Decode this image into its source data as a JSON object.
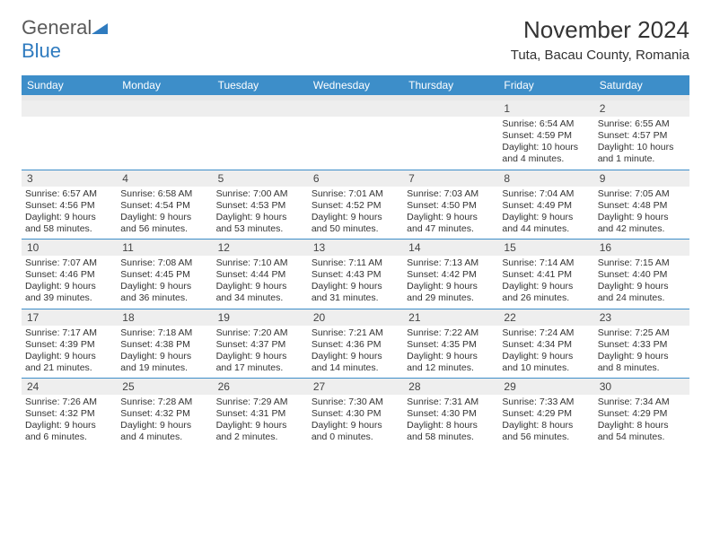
{
  "brand": {
    "name_part1": "General",
    "name_part2": "Blue"
  },
  "header": {
    "month_title": "November 2024",
    "location": "Tuta, Bacau County, Romania"
  },
  "colors": {
    "header_bar": "#3d8ec9",
    "daynum_bg": "#eeeeee",
    "week_divider": "#3d8ec9",
    "text": "#333333",
    "brand_gray": "#5a5a5a",
    "brand_blue": "#2f7bbf",
    "background": "#ffffff"
  },
  "typography": {
    "title_size_pt": 26,
    "location_size_pt": 15,
    "weekday_size_pt": 12,
    "cell_size_pt": 10.5,
    "family": "Arial"
  },
  "weekdays": [
    "Sunday",
    "Monday",
    "Tuesday",
    "Wednesday",
    "Thursday",
    "Friday",
    "Saturday"
  ],
  "weeks": [
    [
      null,
      null,
      null,
      null,
      null,
      {
        "n": "1",
        "sr": "Sunrise: 6:54 AM",
        "ss": "Sunset: 4:59 PM",
        "dl": "Daylight: 10 hours and 4 minutes."
      },
      {
        "n": "2",
        "sr": "Sunrise: 6:55 AM",
        "ss": "Sunset: 4:57 PM",
        "dl": "Daylight: 10 hours and 1 minute."
      }
    ],
    [
      {
        "n": "3",
        "sr": "Sunrise: 6:57 AM",
        "ss": "Sunset: 4:56 PM",
        "dl": "Daylight: 9 hours and 58 minutes."
      },
      {
        "n": "4",
        "sr": "Sunrise: 6:58 AM",
        "ss": "Sunset: 4:54 PM",
        "dl": "Daylight: 9 hours and 56 minutes."
      },
      {
        "n": "5",
        "sr": "Sunrise: 7:00 AM",
        "ss": "Sunset: 4:53 PM",
        "dl": "Daylight: 9 hours and 53 minutes."
      },
      {
        "n": "6",
        "sr": "Sunrise: 7:01 AM",
        "ss": "Sunset: 4:52 PM",
        "dl": "Daylight: 9 hours and 50 minutes."
      },
      {
        "n": "7",
        "sr": "Sunrise: 7:03 AM",
        "ss": "Sunset: 4:50 PM",
        "dl": "Daylight: 9 hours and 47 minutes."
      },
      {
        "n": "8",
        "sr": "Sunrise: 7:04 AM",
        "ss": "Sunset: 4:49 PM",
        "dl": "Daylight: 9 hours and 44 minutes."
      },
      {
        "n": "9",
        "sr": "Sunrise: 7:05 AM",
        "ss": "Sunset: 4:48 PM",
        "dl": "Daylight: 9 hours and 42 minutes."
      }
    ],
    [
      {
        "n": "10",
        "sr": "Sunrise: 7:07 AM",
        "ss": "Sunset: 4:46 PM",
        "dl": "Daylight: 9 hours and 39 minutes."
      },
      {
        "n": "11",
        "sr": "Sunrise: 7:08 AM",
        "ss": "Sunset: 4:45 PM",
        "dl": "Daylight: 9 hours and 36 minutes."
      },
      {
        "n": "12",
        "sr": "Sunrise: 7:10 AM",
        "ss": "Sunset: 4:44 PM",
        "dl": "Daylight: 9 hours and 34 minutes."
      },
      {
        "n": "13",
        "sr": "Sunrise: 7:11 AM",
        "ss": "Sunset: 4:43 PM",
        "dl": "Daylight: 9 hours and 31 minutes."
      },
      {
        "n": "14",
        "sr": "Sunrise: 7:13 AM",
        "ss": "Sunset: 4:42 PM",
        "dl": "Daylight: 9 hours and 29 minutes."
      },
      {
        "n": "15",
        "sr": "Sunrise: 7:14 AM",
        "ss": "Sunset: 4:41 PM",
        "dl": "Daylight: 9 hours and 26 minutes."
      },
      {
        "n": "16",
        "sr": "Sunrise: 7:15 AM",
        "ss": "Sunset: 4:40 PM",
        "dl": "Daylight: 9 hours and 24 minutes."
      }
    ],
    [
      {
        "n": "17",
        "sr": "Sunrise: 7:17 AM",
        "ss": "Sunset: 4:39 PM",
        "dl": "Daylight: 9 hours and 21 minutes."
      },
      {
        "n": "18",
        "sr": "Sunrise: 7:18 AM",
        "ss": "Sunset: 4:38 PM",
        "dl": "Daylight: 9 hours and 19 minutes."
      },
      {
        "n": "19",
        "sr": "Sunrise: 7:20 AM",
        "ss": "Sunset: 4:37 PM",
        "dl": "Daylight: 9 hours and 17 minutes."
      },
      {
        "n": "20",
        "sr": "Sunrise: 7:21 AM",
        "ss": "Sunset: 4:36 PM",
        "dl": "Daylight: 9 hours and 14 minutes."
      },
      {
        "n": "21",
        "sr": "Sunrise: 7:22 AM",
        "ss": "Sunset: 4:35 PM",
        "dl": "Daylight: 9 hours and 12 minutes."
      },
      {
        "n": "22",
        "sr": "Sunrise: 7:24 AM",
        "ss": "Sunset: 4:34 PM",
        "dl": "Daylight: 9 hours and 10 minutes."
      },
      {
        "n": "23",
        "sr": "Sunrise: 7:25 AM",
        "ss": "Sunset: 4:33 PM",
        "dl": "Daylight: 9 hours and 8 minutes."
      }
    ],
    [
      {
        "n": "24",
        "sr": "Sunrise: 7:26 AM",
        "ss": "Sunset: 4:32 PM",
        "dl": "Daylight: 9 hours and 6 minutes."
      },
      {
        "n": "25",
        "sr": "Sunrise: 7:28 AM",
        "ss": "Sunset: 4:32 PM",
        "dl": "Daylight: 9 hours and 4 minutes."
      },
      {
        "n": "26",
        "sr": "Sunrise: 7:29 AM",
        "ss": "Sunset: 4:31 PM",
        "dl": "Daylight: 9 hours and 2 minutes."
      },
      {
        "n": "27",
        "sr": "Sunrise: 7:30 AM",
        "ss": "Sunset: 4:30 PM",
        "dl": "Daylight: 9 hours and 0 minutes."
      },
      {
        "n": "28",
        "sr": "Sunrise: 7:31 AM",
        "ss": "Sunset: 4:30 PM",
        "dl": "Daylight: 8 hours and 58 minutes."
      },
      {
        "n": "29",
        "sr": "Sunrise: 7:33 AM",
        "ss": "Sunset: 4:29 PM",
        "dl": "Daylight: 8 hours and 56 minutes."
      },
      {
        "n": "30",
        "sr": "Sunrise: 7:34 AM",
        "ss": "Sunset: 4:29 PM",
        "dl": "Daylight: 8 hours and 54 minutes."
      }
    ]
  ]
}
